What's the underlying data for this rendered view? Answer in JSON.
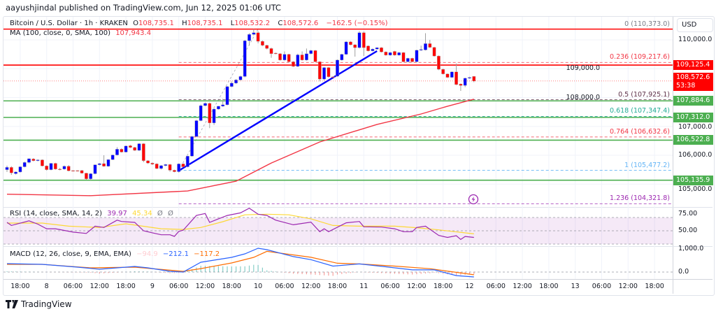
{
  "header": {
    "published": "aayushjindal published on TradingView.com, Jun 12, 2025 01:06 UTC"
  },
  "legend": {
    "symbol": "Bitcoin / U.S. Dollar · 1h · KRAKEN",
    "o_label": "O",
    "o": "108,735.1",
    "h_label": "H",
    "h": "108,735.1",
    "l_label": "L",
    "l": "108,532.2",
    "c_label": "C",
    "c": "108,572.6",
    "change": "−162.5 (−0.15%)",
    "ma_label": "MA (100, close, 0, SMA, 100)",
    "ma_value": "107,943.4",
    "rsi_label": "RSI (14, close, SMA, 14, 2)",
    "rsi_value": "39.97",
    "rsi_signal": "45.34",
    "rsi_extra1": "Ø",
    "rsi_extra2": "Ø",
    "macd_label": "MACD (12, 26, close, 9, EMA, EMA)",
    "macd_hist": "−94.9",
    "macd_value": "−212.1",
    "macd_signal": "−117.2"
  },
  "currency": "USD",
  "footer": {
    "brand": "TradingView"
  },
  "colors": {
    "bull": "#0000ff",
    "bear": "#ff0000",
    "ma": "#f23645",
    "support": "#4caf50",
    "resistance": "#ff0000",
    "trendline": "#0000ff",
    "rsi": "#9c27b0",
    "rsi_signal": "#fdd835",
    "macd": "#2962ff",
    "macd_signal": "#ff6d00"
  },
  "chart_data": {
    "type": "candlestick",
    "first_candle": "06-07 15:00",
    "interval": "1h",
    "price_ticks": [
      "110,000.0",
      "109,000.0",
      "108,000.0",
      "107,000.0",
      "106,000.0",
      "105,000.0"
    ],
    "price_tick_values": [
      110000,
      109000,
      108000,
      107000,
      106000,
      105000
    ],
    "time_ticks": [
      "18:00",
      "8",
      "06:00",
      "12:00",
      "18:00",
      "9",
      "06:00",
      "12:00",
      "18:00",
      "10",
      "06:00",
      "12:00",
      "18:00",
      "11",
      "06:00",
      "12:00",
      "18:00",
      "12",
      "06:00",
      "12:00",
      "18:00",
      "13",
      "06:00",
      "12:00",
      "18:00"
    ],
    "first_time_tick": "06-07 18:00",
    "candles_ohlc": [
      [
        105500,
        105640,
        105420,
        105580
      ],
      [
        105580,
        105620,
        105320,
        105390
      ],
      [
        105360,
        105440,
        105330,
        105420
      ],
      [
        105420,
        105620,
        105400,
        105600
      ],
      [
        105600,
        105780,
        105580,
        105750
      ],
      [
        105750,
        105890,
        105720,
        105880
      ],
      [
        105870,
        105900,
        105790,
        105810
      ],
      [
        105810,
        105860,
        105790,
        105840
      ],
      [
        105840,
        105860,
        105610,
        105630
      ],
      [
        105630,
        105650,
        105470,
        105500
      ],
      [
        105500,
        105730,
        105480,
        105720
      ],
      [
        105720,
        105740,
        105500,
        105520
      ],
      [
        105520,
        105560,
        105480,
        105500
      ],
      [
        105520,
        105650,
        105500,
        105620
      ],
      [
        105620,
        105660,
        105440,
        105460
      ],
      [
        105470,
        105480,
        105440,
        105460
      ],
      [
        105470,
        105480,
        105440,
        105450
      ],
      [
        105470,
        105490,
        105360,
        105380
      ],
      [
        105380,
        105390,
        105150,
        105180
      ],
      [
        105180,
        105380,
        105140,
        105360
      ],
      [
        105360,
        105680,
        105340,
        105670
      ],
      [
        105670,
        105730,
        105650,
        105710
      ],
      [
        105710,
        106000,
        105600,
        105620
      ],
      [
        105620,
        105860,
        105600,
        105850
      ],
      [
        105850,
        106020,
        105830,
        106010
      ],
      [
        106010,
        106280,
        105990,
        106210
      ],
      [
        106210,
        106240,
        106090,
        106110
      ],
      [
        106110,
        106340,
        106090,
        106320
      ],
      [
        106330,
        106360,
        106250,
        106270
      ],
      [
        106270,
        106290,
        106150,
        106170
      ],
      [
        106170,
        106420,
        106150,
        106400
      ],
      [
        106400,
        106420,
        105760,
        105810
      ],
      [
        105810,
        105830,
        105700,
        105730
      ],
      [
        105730,
        105750,
        105660,
        105690
      ],
      [
        105700,
        105720,
        105520,
        105540
      ],
      [
        105540,
        105660,
        105510,
        105640
      ],
      [
        105640,
        105700,
        105620,
        105680
      ],
      [
        105680,
        105700,
        105430,
        105480
      ],
      [
        105480,
        105500,
        105410,
        105430
      ],
      [
        105430,
        105720,
        105400,
        105700
      ],
      [
        105700,
        105720,
        105590,
        105600
      ],
      [
        105600,
        105980,
        105580,
        105970
      ],
      [
        105970,
        106670,
        105950,
        106650
      ],
      [
        106650,
        107230,
        106630,
        107200
      ],
      [
        107200,
        107760,
        107180,
        107720
      ],
      [
        107720,
        107830,
        107700,
        107800
      ],
      [
        107800,
        107830,
        106940,
        107120
      ],
      [
        107120,
        107630,
        107050,
        107600
      ],
      [
        107600,
        107710,
        107580,
        107700
      ],
      [
        107700,
        107960,
        107680,
        107750
      ],
      [
        107750,
        108400,
        107730,
        108380
      ],
      [
        108380,
        108560,
        108360,
        108500
      ],
      [
        108500,
        108640,
        108470,
        108610
      ],
      [
        108610,
        108760,
        108590,
        108730
      ],
      [
        108730,
        110000,
        108700,
        109970
      ],
      [
        109970,
        110230,
        109800,
        110190
      ],
      [
        110190,
        110373,
        110150,
        110250
      ],
      [
        110250,
        110300,
        109880,
        109950
      ],
      [
        109950,
        109980,
        109780,
        109810
      ],
      [
        109810,
        109830,
        109670,
        109700
      ],
      [
        109700,
        109730,
        109380,
        109520
      ],
      [
        109540,
        109560,
        109500,
        109520
      ],
      [
        109520,
        109540,
        109280,
        109300
      ],
      [
        109300,
        109600,
        109280,
        109500
      ],
      [
        109500,
        109520,
        109220,
        109240
      ],
      [
        109240,
        109260,
        109060,
        109080
      ],
      [
        109080,
        109520,
        109060,
        109480
      ],
      [
        109480,
        109600,
        109280,
        109300
      ],
      [
        109300,
        109700,
        109280,
        109520
      ],
      [
        109520,
        109650,
        109500,
        109630
      ],
      [
        109630,
        109650,
        109220,
        109240
      ],
      [
        109240,
        109260,
        108560,
        108640
      ],
      [
        108640,
        109060,
        108590,
        109040
      ],
      [
        109040,
        109060,
        108690,
        108720
      ],
      [
        108720,
        108740,
        108690,
        108710
      ],
      [
        108740,
        109320,
        108720,
        109300
      ],
      [
        109300,
        109520,
        109280,
        109500
      ],
      [
        109500,
        109960,
        109480,
        109930
      ],
      [
        109930,
        109960,
        109810,
        109830
      ],
      [
        109830,
        109850,
        109420,
        109730
      ],
      [
        109730,
        110300,
        109700,
        110250
      ],
      [
        110250,
        110290,
        109440,
        109730
      ],
      [
        109790,
        109810,
        109600,
        109620
      ],
      [
        109620,
        109700,
        109600,
        109680
      ],
      [
        109680,
        109740,
        109660,
        109730
      ],
      [
        109730,
        109750,
        109560,
        109580
      ],
      [
        109580,
        109600,
        109450,
        109470
      ],
      [
        109470,
        109580,
        109450,
        109560
      ],
      [
        109600,
        109620,
        109450,
        109470
      ],
      [
        109470,
        109580,
        109450,
        109560
      ],
      [
        109560,
        109580,
        109220,
        109240
      ],
      [
        109240,
        109380,
        109220,
        109360
      ],
      [
        109360,
        109380,
        109220,
        109240
      ],
      [
        109240,
        109660,
        109220,
        109640
      ],
      [
        109640,
        109800,
        109620,
        109670
      ],
      [
        109650,
        110230,
        109630,
        109870
      ],
      [
        109870,
        110000,
        109720,
        109740
      ],
      [
        109740,
        109760,
        109420,
        109440
      ],
      [
        109440,
        109460,
        108950,
        108980
      ],
      [
        108980,
        109000,
        108800,
        108820
      ],
      [
        108820,
        108840,
        108680,
        108700
      ],
      [
        108700,
        108910,
        108680,
        108890
      ],
      [
        108890,
        109180,
        108430,
        108450
      ],
      [
        108470,
        108490,
        108230,
        108420
      ],
      [
        108420,
        108690,
        108360,
        108670
      ],
      [
        108670,
        108720,
        108650,
        108700
      ],
      [
        108735.1,
        108735.1,
        108532.2,
        108572.6
      ]
    ],
    "ma100": [
      [
        "06-07 15:00",
        104650
      ],
      [
        "06-08 10:00",
        104600
      ],
      [
        "06-09 08:00",
        104760
      ],
      [
        "06-09 19:00",
        105100
      ],
      [
        "06-10 03:00",
        105730
      ],
      [
        "06-10 14:00",
        106460
      ],
      [
        "06-11 03:00",
        107070
      ],
      [
        "06-11 13:00",
        107430
      ],
      [
        "06-11 19:00",
        107700
      ],
      [
        "06-12 01:00",
        107943.4
      ]
    ],
    "horizontal_levels": [
      {
        "value": 110373.0,
        "color": "#ff0000",
        "label": ""
      },
      {
        "value": 109125.4,
        "color": "#ff0000",
        "label": "109,125.4"
      },
      {
        "value": 107884.6,
        "color": "#4caf50",
        "label": "107,884.6"
      },
      {
        "value": 107312.0,
        "color": "#4caf50",
        "label": "107,312.0"
      },
      {
        "value": 106522.8,
        "color": "#4caf50",
        "label": "106,522.8"
      },
      {
        "value": 105135.9,
        "color": "#4caf50",
        "label": "105,135.9"
      }
    ],
    "last_price": {
      "label": "108,572.6",
      "countdown": "53:38",
      "value": 108572.6
    },
    "trendline": [
      [
        "06-09 06:00",
        105467
      ],
      [
        "06-11 03:00",
        109612
      ]
    ],
    "fibonacci": {
      "from": [
        "06-09 06:00",
        105477.2
      ],
      "to": [
        "06-10 00:00",
        110373.0
      ],
      "levels": [
        {
          "ratio": "0",
          "value": 110373.0,
          "text": "0 (110,373.0)",
          "color": "#787b86"
        },
        {
          "ratio": "0.236",
          "value": 109217.6,
          "text": "0.236 (109,217.6)",
          "color": "#f23645"
        },
        {
          "ratio": "0.5",
          "value": 107925.1,
          "text": "0.5 (107,925.1)",
          "color": "#5d3048"
        },
        {
          "ratio": "0.618",
          "value": 107347.4,
          "text": "0.618 (107,347.4)",
          "color": "#22ab94"
        },
        {
          "ratio": "0.764",
          "value": 106632.6,
          "text": "0.764 (106,632.6)",
          "color": "#f23645"
        },
        {
          "ratio": "1",
          "value": 105477.2,
          "text": "1 (105,477.2)",
          "color": "#64b5f6"
        },
        {
          "ratio": "1.236",
          "value": 104321.8,
          "text": "1.236 (104,321.8)",
          "color": "#9c27b0"
        }
      ]
    },
    "rsi": {
      "ticks": [
        "75.00",
        "50.00"
      ],
      "tick_values": [
        75,
        50
      ],
      "band": [
        30,
        70
      ],
      "line": [
        [
          "06-07 15:00",
          62.6
        ],
        [
          "06-07 16:00",
          58
        ],
        [
          "06-07 20:00",
          65
        ],
        [
          "06-07 22:00",
          60
        ],
        [
          "06-08 00:00",
          53
        ],
        [
          "06-08 02:00",
          53
        ],
        [
          "06-08 06:00",
          48
        ],
        [
          "06-08 09:00",
          46
        ],
        [
          "06-08 11:00",
          57
        ],
        [
          "06-08 13:00",
          55
        ],
        [
          "06-08 16:00",
          66
        ],
        [
          "06-08 17:00",
          64
        ],
        [
          "06-08 20:00",
          62.6
        ],
        [
          "06-08 22:00",
          50
        ],
        [
          "06-09 00:00",
          47
        ],
        [
          "06-09 02:00",
          44
        ],
        [
          "06-09 04:00",
          44
        ],
        [
          "06-09 05:00",
          41.6
        ],
        [
          "06-09 06:00",
          49
        ],
        [
          "06-09 07:00",
          51
        ],
        [
          "06-09 10:00",
          73
        ],
        [
          "06-09 12:00",
          76
        ],
        [
          "06-09 13:00",
          62.6
        ],
        [
          "06-09 15:00",
          68
        ],
        [
          "06-09 17:00",
          73
        ],
        [
          "06-09 20:00",
          77
        ],
        [
          "06-09 22:00",
          84
        ],
        [
          "06-10 00:00",
          75
        ],
        [
          "06-10 02:00",
          73
        ],
        [
          "06-10 04:00",
          66
        ],
        [
          "06-10 08:00",
          59
        ],
        [
          "06-10 12:00",
          63
        ],
        [
          "06-10 14:00",
          48.6
        ],
        [
          "06-10 15:00",
          53
        ],
        [
          "06-10 16:00",
          48.6
        ],
        [
          "06-10 20:00",
          62
        ],
        [
          "06-10 23:00",
          64
        ],
        [
          "06-11 00:00",
          56
        ],
        [
          "06-11 04:00",
          55.6
        ],
        [
          "06-11 07:00",
          53
        ],
        [
          "06-11 09:00",
          48.6
        ],
        [
          "06-11 11:00",
          48.6
        ],
        [
          "06-11 12:00",
          55
        ],
        [
          "06-11 14:00",
          57
        ],
        [
          "06-11 17:00",
          43
        ],
        [
          "06-11 19:00",
          40
        ],
        [
          "06-11 21:00",
          42.6
        ],
        [
          "06-11 22:00",
          37
        ],
        [
          "06-11 23:00",
          41.5
        ],
        [
          "06-12 01:00",
          39.97
        ]
      ],
      "signal": [
        [
          "06-07 15:00",
          61.6
        ],
        [
          "06-07 23:00",
          61.6
        ],
        [
          "06-08 05:00",
          57
        ],
        [
          "06-08 12:00",
          55
        ],
        [
          "06-08 18:00",
          60.5
        ],
        [
          "06-09 02:00",
          53
        ],
        [
          "06-09 07:00",
          52
        ],
        [
          "06-09 11:00",
          55
        ],
        [
          "06-09 16:00",
          63.7
        ],
        [
          "06-09 21:00",
          74
        ],
        [
          "06-10 02:00",
          75
        ],
        [
          "06-10 07:00",
          74
        ],
        [
          "06-10 12:00",
          68
        ],
        [
          "06-10 17:00",
          58
        ],
        [
          "06-10 23:00",
          57
        ],
        [
          "06-11 07:00",
          57
        ],
        [
          "06-11 12:00",
          54.6
        ],
        [
          "06-11 17:00",
          51.4
        ],
        [
          "06-12 01:00",
          45.34
        ]
      ]
    },
    "macd": {
      "ticks": [
        "1,000.0",
        "0.0"
      ],
      "tick_values": [
        1000,
        0
      ],
      "line": [
        [
          "06-07 15:00",
          364
        ],
        [
          "06-07 23:00",
          333
        ],
        [
          "06-08 07:00",
          212
        ],
        [
          "06-08 12:00",
          121
        ],
        [
          "06-08 20:00",
          242
        ],
        [
          "06-08 23:00",
          182
        ],
        [
          "06-09 04:00",
          30
        ],
        [
          "06-09 07:00",
          0
        ],
        [
          "06-09 11:00",
          424
        ],
        [
          "06-09 18:00",
          636
        ],
        [
          "06-09 21:00",
          788
        ],
        [
          "06-10 00:00",
          1030
        ],
        [
          "06-10 02:00",
          970
        ],
        [
          "06-10 08:00",
          670
        ],
        [
          "06-10 12:00",
          535
        ],
        [
          "06-10 17:00",
          258
        ],
        [
          "06-10 23:00",
          350
        ],
        [
          "06-11 05:00",
          227
        ],
        [
          "06-11 11:00",
          93
        ],
        [
          "06-11 16:00",
          93
        ],
        [
          "06-11 21:00",
          -155
        ],
        [
          "06-12 01:00",
          -212.1
        ]
      ],
      "signal": [
        [
          "06-07 15:00",
          333
        ],
        [
          "06-07 23:00",
          333
        ],
        [
          "06-08 10:00",
          182
        ],
        [
          "06-08 20:00",
          212
        ],
        [
          "06-09 07:00",
          30
        ],
        [
          "06-09 11:00",
          150
        ],
        [
          "06-09 18:00",
          394
        ],
        [
          "06-09 23:00",
          636
        ],
        [
          "06-10 02:00",
          896
        ],
        [
          "06-10 12:00",
          640
        ],
        [
          "06-10 18:00",
          381
        ],
        [
          "06-10 23:00",
          350
        ],
        [
          "06-11 07:00",
          258
        ],
        [
          "06-11 15:00",
          144
        ],
        [
          "06-12 01:00",
          -117.2
        ]
      ]
    }
  }
}
